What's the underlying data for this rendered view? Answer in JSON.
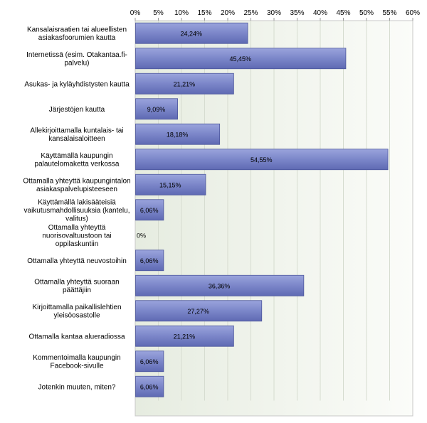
{
  "chart_data": {
    "type": "bar",
    "orientation": "horizontal",
    "title": "",
    "xlabel": "",
    "ylabel": "",
    "xlim": [
      0,
      60
    ],
    "x_ticks": [
      "0%",
      "5%",
      "10%",
      "15%",
      "20%",
      "25%",
      "30%",
      "35%",
      "40%",
      "45%",
      "50%",
      "55%",
      "60%"
    ],
    "grid": true,
    "bar_color": "#7b86c9",
    "categories": [
      [
        "Kansalaisraatien tai alueellisten",
        "asiakasfoorumien kautta"
      ],
      [
        "Internetissä (esim. Otakantaa.fi-",
        "palvelu)"
      ],
      [
        "Asukas- ja kyläyhdistysten kautta"
      ],
      [
        "Järjestöjen kautta"
      ],
      [
        "Allekirjoittamalla kuntalais- tai",
        "kansalaisaloitteen"
      ],
      [
        "Käyttämällä kaupungin",
        "palautelomaketta verkossa"
      ],
      [
        "Ottamalla yhteyttä kaupungintalon",
        "asiakaspalvelupisteeseen"
      ],
      [
        "Käyttämällä lakisääteisiä",
        "vaikutusmahdollisuuksia (kantelu,",
        "valitus)"
      ],
      [
        "Ottamalla yhteyttä",
        "nuorisovaltuustoon tai",
        "oppilaskuntiin"
      ],
      [
        "Ottamalla yhteyttä neuvostoihin"
      ],
      [
        "Ottamalla yhteyttä suoraan",
        "päättäjiin"
      ],
      [
        "Kirjoittamalla paikallislehtien",
        "yleisöosastolle"
      ],
      [
        "Ottamalla kantaa alueradiossa"
      ],
      [
        "Kommentoimalla kaupungin",
        "Facebook-sivulle"
      ],
      [
        "Jotenkin muuten, miten?"
      ]
    ],
    "values": [
      24.24,
      45.45,
      21.21,
      9.09,
      18.18,
      54.55,
      15.15,
      6.06,
      0,
      6.06,
      36.36,
      27.27,
      21.21,
      6.06,
      6.06
    ],
    "value_labels": [
      "24,24%",
      "45,45%",
      "21,21%",
      "9,09%",
      "18,18%",
      "54,55%",
      "15,15%",
      "6,06%",
      "0%",
      "6,06%",
      "36,36%",
      "27,27%",
      "21,21%",
      "6,06%",
      "6,06%"
    ]
  }
}
